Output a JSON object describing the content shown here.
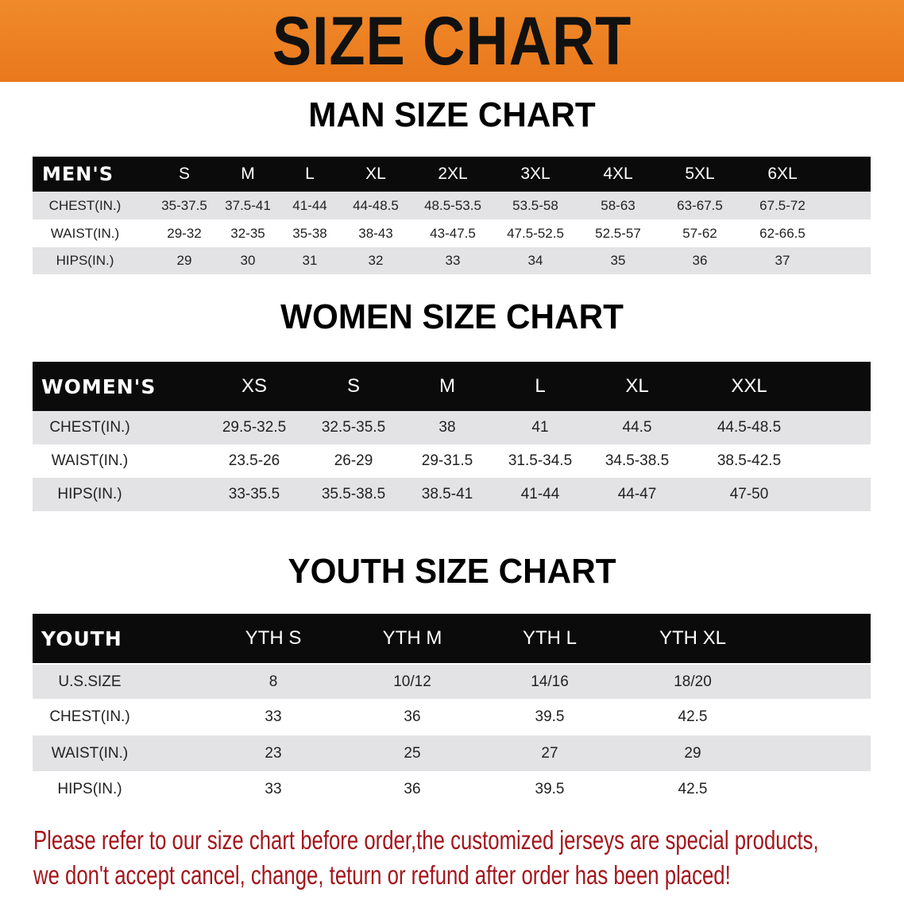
{
  "banner": {
    "title": "SIZE CHART",
    "color": "#ec801f"
  },
  "men": {
    "title": "MAN SIZE CHART",
    "header": [
      "MEN'S",
      "S",
      "M",
      "L",
      "XL",
      "2XL",
      "3XL",
      "4XL",
      "5XL",
      "6XL"
    ],
    "rows": [
      [
        "CHEST(IN.)",
        "35-37.5",
        "37.5-41",
        "41-44",
        "44-48.5",
        "48.5-53.5",
        "53.5-58",
        "58-63",
        "63-67.5",
        "67.5-72"
      ],
      [
        "WAIST(IN.)",
        "29-32",
        "32-35",
        "35-38",
        "38-43",
        "43-47.5",
        "47.5-52.5",
        "52.5-57",
        "57-62",
        "62-66.5"
      ],
      [
        "HIPS(IN.)",
        "29",
        "30",
        "31",
        "32",
        "33",
        "34",
        "35",
        "36",
        "37"
      ]
    ]
  },
  "women": {
    "title": "WOMEN SIZE CHART",
    "header": [
      "WOMEN'S",
      "XS",
      "S",
      "M",
      "L",
      "XL",
      "XXL"
    ],
    "rows": [
      [
        "CHEST(IN.)",
        "29.5-32.5",
        "32.5-35.5",
        "38",
        "41",
        "44.5",
        "44.5-48.5"
      ],
      [
        "WAIST(IN.)",
        "23.5-26",
        "26-29",
        "29-31.5",
        "31.5-34.5",
        "34.5-38.5",
        "38.5-42.5"
      ],
      [
        "HIPS(IN.)",
        "33-35.5",
        "35.5-38.5",
        "38.5-41",
        "41-44",
        "44-47",
        "47-50"
      ]
    ]
  },
  "youth": {
    "title": "YOUTH SIZE CHART",
    "header": [
      "YOUTH",
      "YTH S",
      "YTH M",
      "YTH L",
      "YTH XL"
    ],
    "rows": [
      [
        "U.S.SIZE",
        "8",
        "10/12",
        "14/16",
        "18/20"
      ],
      [
        "CHEST(IN.)",
        "33",
        "36",
        "39.5",
        "42.5"
      ],
      [
        "WAIST(IN.)",
        "23",
        "25",
        "27",
        "29"
      ],
      [
        "HIPS(IN.)",
        "33",
        "36",
        "39.5",
        "42.5"
      ]
    ]
  },
  "note": {
    "line1": "Please refer to our size chart before order,the customized jerseys are special products,",
    "line2": "we don't accept cancel, change, teturn or refund after order has been placed!",
    "color": "#a3161c"
  }
}
